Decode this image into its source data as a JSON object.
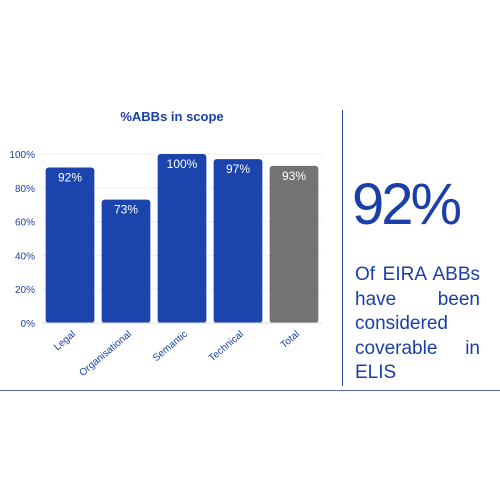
{
  "chart_data": {
    "type": "bar",
    "title": "%ABBs in scope",
    "xlabel": "",
    "ylabel": "",
    "categories": [
      "Legal",
      "Organisational",
      "Semantic",
      "Technical",
      "Total"
    ],
    "values": [
      92,
      73,
      100,
      97,
      93
    ],
    "data_labels": [
      "92%",
      "73%",
      "100%",
      "97%",
      "93%"
    ],
    "ylim": [
      0,
      100
    ],
    "yticks": [
      0,
      20,
      40,
      60,
      80,
      100
    ],
    "ytick_labels": [
      "0%",
      "20%",
      "40%",
      "60%",
      "80%",
      "100%"
    ],
    "bar_colors": [
      "#1b44ad",
      "#1b44ad",
      "#1b44ad",
      "#1b44ad",
      "#737373"
    ],
    "grid": true,
    "legend": "none"
  },
  "stat": {
    "value": "92%",
    "description": "Of EIRA ABBs have been considered coverable in ELIS"
  },
  "colors": {
    "accent": "#1b3fa8",
    "bar": "#1b44ad",
    "total_bar": "#737373"
  }
}
